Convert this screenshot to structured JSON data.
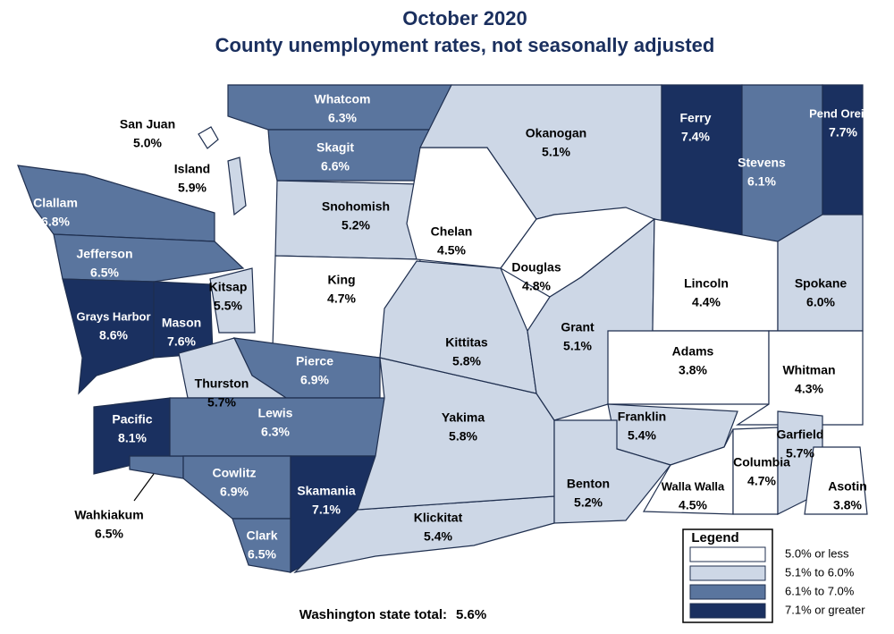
{
  "title": "October 2020",
  "subtitle": "County unemployment rates, not seasonally adjusted",
  "counties": [
    {
      "name": "Whatcom",
      "rate": "6.3%",
      "color": "#5a759e"
    },
    {
      "name": "Skagit",
      "rate": "6.6%",
      "color": "#5a759e"
    },
    {
      "name": "San Juan",
      "rate": "5.0%",
      "color": "#ffffff"
    },
    {
      "name": "Island",
      "rate": "5.9%",
      "color": "#cdd7e6"
    },
    {
      "name": "Clallam",
      "rate": "6.8%",
      "color": "#5a759e"
    },
    {
      "name": "Jefferson",
      "rate": "6.5%",
      "color": "#5a759e"
    },
    {
      "name": "Grays Harbor",
      "rate": "8.6%",
      "color": "#1a3060"
    },
    {
      "name": "Mason",
      "rate": "7.6%",
      "color": "#1a3060"
    },
    {
      "name": "Kitsap",
      "rate": "5.5%",
      "color": "#cdd7e6"
    },
    {
      "name": "Snohomish",
      "rate": "5.2%",
      "color": "#cdd7e6"
    },
    {
      "name": "King",
      "rate": "4.7%",
      "color": "#ffffff"
    },
    {
      "name": "Pierce",
      "rate": "6.9%",
      "color": "#5a759e"
    },
    {
      "name": "Thurston",
      "rate": "5.7%",
      "color": "#cdd7e6"
    },
    {
      "name": "Pacific",
      "rate": "8.1%",
      "color": "#1a3060"
    },
    {
      "name": "Wahkiakum",
      "rate": "6.5%",
      "color": "#5a759e"
    },
    {
      "name": "Lewis",
      "rate": "6.3%",
      "color": "#5a759e"
    },
    {
      "name": "Cowlitz",
      "rate": "6.9%",
      "color": "#5a759e"
    },
    {
      "name": "Clark",
      "rate": "6.5%",
      "color": "#5a759e"
    },
    {
      "name": "Skamania",
      "rate": "7.1%",
      "color": "#1a3060"
    },
    {
      "name": "Klickitat",
      "rate": "5.4%",
      "color": "#cdd7e6"
    },
    {
      "name": "Yakima",
      "rate": "5.8%",
      "color": "#cdd7e6"
    },
    {
      "name": "Kittitas",
      "rate": "5.8%",
      "color": "#cdd7e6"
    },
    {
      "name": "Chelan",
      "rate": "4.5%",
      "color": "#ffffff"
    },
    {
      "name": "Okanogan",
      "rate": "5.1%",
      "color": "#cdd7e6"
    },
    {
      "name": "Douglas",
      "rate": "4.8%",
      "color": "#ffffff"
    },
    {
      "name": "Grant",
      "rate": "5.1%",
      "color": "#cdd7e6"
    },
    {
      "name": "Ferry",
      "rate": "7.4%",
      "color": "#1a3060"
    },
    {
      "name": "Stevens",
      "rate": "6.1%",
      "color": "#5a759e"
    },
    {
      "name": "Pend Oreille",
      "rate": "7.7%",
      "color": "#1a3060"
    },
    {
      "name": "Lincoln",
      "rate": "4.4%",
      "color": "#ffffff"
    },
    {
      "name": "Spokane",
      "rate": "6.0%",
      "color": "#cdd7e6"
    },
    {
      "name": "Adams",
      "rate": "3.8%",
      "color": "#ffffff"
    },
    {
      "name": "Whitman",
      "rate": "4.3%",
      "color": "#ffffff"
    },
    {
      "name": "Franklin",
      "rate": "5.4%",
      "color": "#cdd7e6"
    },
    {
      "name": "Benton",
      "rate": "5.2%",
      "color": "#cdd7e6"
    },
    {
      "name": "Walla Walla",
      "rate": "4.5%",
      "color": "#ffffff"
    },
    {
      "name": "Columbia",
      "rate": "4.7%",
      "color": "#ffffff"
    },
    {
      "name": "Garfield",
      "rate": "5.7%",
      "color": "#cdd7e6"
    },
    {
      "name": "Asotin",
      "rate": "3.8%",
      "color": "#ffffff"
    }
  ],
  "legend": {
    "title": "Legend",
    "items": [
      {
        "label": "5.0% or less",
        "color": "#ffffff"
      },
      {
        "label": "5.1% to 6.0%",
        "color": "#cdd7e6"
      },
      {
        "label": "6.1% to 7.0%",
        "color": "#5a759e"
      },
      {
        "label": "7.1% or greater",
        "color": "#1a3060"
      }
    ]
  },
  "state_total": {
    "label": "Washington state total:",
    "rate": "5.6%"
  }
}
